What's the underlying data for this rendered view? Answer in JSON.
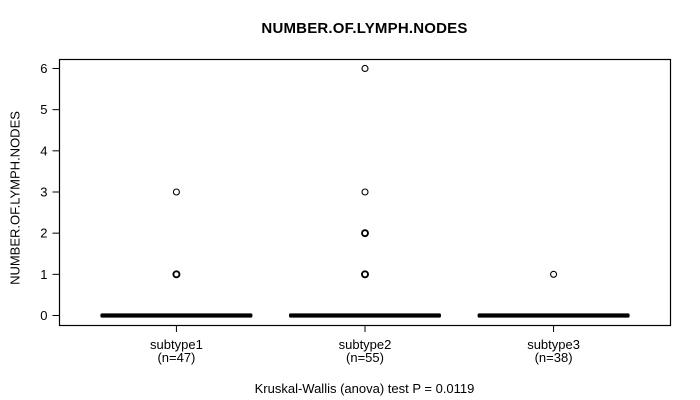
{
  "chart_data": {
    "type": "boxplot",
    "title": "NUMBER.OF.LYMPH.NODES",
    "ylabel": "NUMBER.OF.LYMPH.NODES",
    "xlabel": "",
    "caption": "Kruskal-Wallis (anova) test P = 0.0119",
    "p_value": 0.0119,
    "ylim": [
      0,
      6
    ],
    "yticks": [
      0,
      1,
      2,
      3,
      4,
      5,
      6
    ],
    "grid": false,
    "legend": "none",
    "colors": {
      "foreground": "#000000",
      "background": "#ffffff"
    },
    "groups": [
      {
        "label": "subtype1",
        "sublabel": "(n=47)",
        "n": 47,
        "median": 0,
        "q1": 0,
        "q3": 0,
        "outliers": [
          {
            "value": 3,
            "overplotted": false
          },
          {
            "value": 1,
            "overplotted": true
          }
        ]
      },
      {
        "label": "subtype2",
        "sublabel": "(n=55)",
        "n": 55,
        "median": 0,
        "q1": 0,
        "q3": 0,
        "outliers": [
          {
            "value": 6,
            "overplotted": false
          },
          {
            "value": 3,
            "overplotted": false
          },
          {
            "value": 2,
            "overplotted": true
          },
          {
            "value": 1,
            "overplotted": true
          }
        ]
      },
      {
        "label": "subtype3",
        "sublabel": "(n=38)",
        "n": 38,
        "median": 0,
        "q1": 0,
        "q3": 0,
        "outliers": [
          {
            "value": 1,
            "overplotted": false
          }
        ]
      }
    ]
  }
}
